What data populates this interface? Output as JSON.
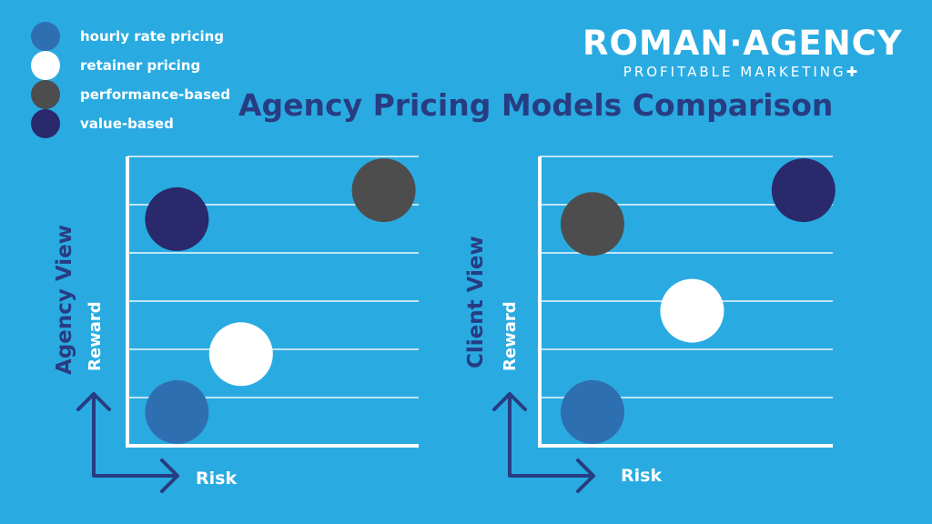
{
  "brand": {
    "name": "ROMAN·AGENCY",
    "tagline": "PROFITABLE MARKETING✚"
  },
  "title": "Agency Pricing Models Comparison",
  "legend": [
    {
      "label": "hourly rate pricing",
      "color": "#2e6fb1"
    },
    {
      "label": "retainer pricing",
      "color": "#ffffff"
    },
    {
      "label": "performance-based",
      "color": "#4d4d4d"
    },
    {
      "label": "value-based",
      "color": "#29296b"
    }
  ],
  "chart_data": [
    {
      "type": "scatter",
      "title": "Agency View",
      "xlabel": "Risk",
      "ylabel": "Reward",
      "xlim": [
        0,
        10
      ],
      "ylim": [
        0,
        6
      ],
      "grid": true,
      "series": [
        {
          "name": "hourly rate pricing",
          "x": 1.7,
          "y": 0.7
        },
        {
          "name": "retainer pricing",
          "x": 3.9,
          "y": 1.9
        },
        {
          "name": "performance-based",
          "x": 8.8,
          "y": 5.3
        },
        {
          "name": "value-based",
          "x": 1.7,
          "y": 4.7
        }
      ]
    },
    {
      "type": "scatter",
      "title": "Client View",
      "xlabel": "Risk",
      "ylabel": "Reward",
      "xlim": [
        0,
        10
      ],
      "ylim": [
        0,
        6
      ],
      "grid": true,
      "series": [
        {
          "name": "hourly rate pricing",
          "x": 1.8,
          "y": 0.7
        },
        {
          "name": "retainer pricing",
          "x": 5.2,
          "y": 2.8
        },
        {
          "name": "performance-based",
          "x": 1.8,
          "y": 4.6
        },
        {
          "name": "value-based",
          "x": 9.0,
          "y": 5.3
        }
      ]
    }
  ]
}
